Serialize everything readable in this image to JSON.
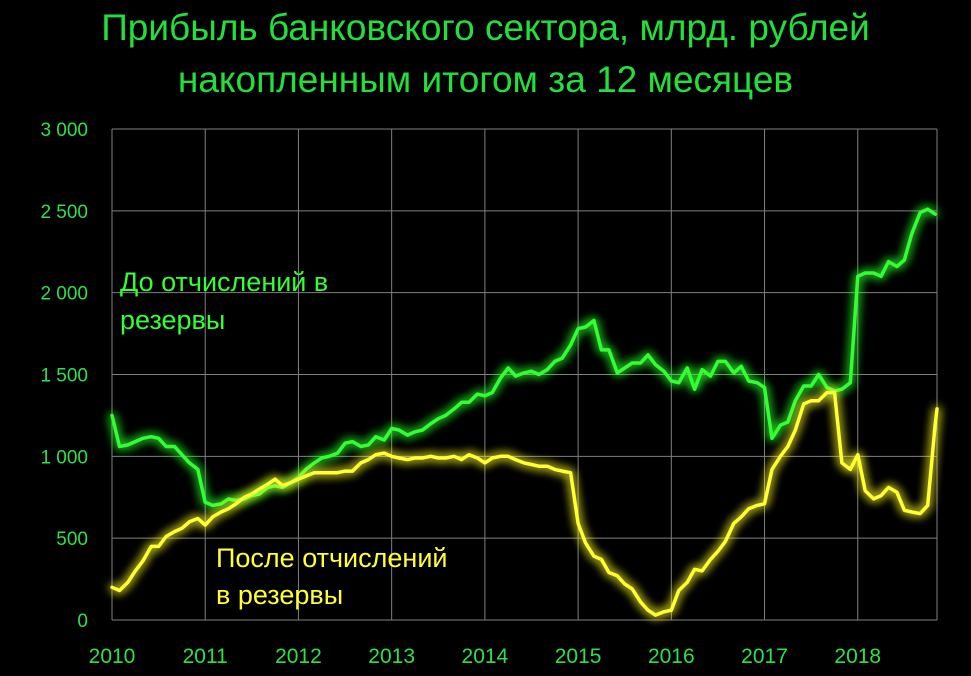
{
  "chart_data": {
    "type": "line",
    "title_line1": "Прибыль банковского сектора, млрд. рублей",
    "title_line2": "накопленным итогом за 12 месяцев",
    "y_ticks": [
      "0",
      "500",
      "1 000",
      "1 500",
      "2 000",
      "2 500",
      "3 000"
    ],
    "y_tick_values": [
      0,
      500,
      1000,
      1500,
      2000,
      2500,
      3000
    ],
    "x_ticks": [
      "2010",
      "2011",
      "2012",
      "2013",
      "2014",
      "2015",
      "2016",
      "2017",
      "2018"
    ],
    "x_tick_values": [
      2010,
      2011,
      2012,
      2013,
      2014,
      2015,
      2016,
      2017,
      2018
    ],
    "xlim": [
      2010,
      2018.85
    ],
    "ylim": [
      0,
      3000
    ],
    "grid": true,
    "series": [
      {
        "label_line1": "До отчислений в",
        "label_line2": "резервы",
        "color": "#33ff33",
        "points": [
          [
            2010.0,
            1250
          ],
          [
            2010.08,
            1060
          ],
          [
            2010.17,
            1070
          ],
          [
            2010.25,
            1090
          ],
          [
            2010.33,
            1110
          ],
          [
            2010.42,
            1120
          ],
          [
            2010.5,
            1110
          ],
          [
            2010.58,
            1060
          ],
          [
            2010.67,
            1060
          ],
          [
            2010.75,
            1010
          ],
          [
            2010.83,
            960
          ],
          [
            2010.92,
            920
          ],
          [
            2011.0,
            720
          ],
          [
            2011.08,
            700
          ],
          [
            2011.17,
            710
          ],
          [
            2011.25,
            740
          ],
          [
            2011.33,
            730
          ],
          [
            2011.42,
            740
          ],
          [
            2011.5,
            760
          ],
          [
            2011.58,
            770
          ],
          [
            2011.67,
            810
          ],
          [
            2011.75,
            820
          ],
          [
            2011.83,
            810
          ],
          [
            2011.92,
            840
          ],
          [
            2012.0,
            870
          ],
          [
            2012.08,
            920
          ],
          [
            2012.17,
            960
          ],
          [
            2012.25,
            990
          ],
          [
            2012.33,
            1000
          ],
          [
            2012.42,
            1020
          ],
          [
            2012.5,
            1080
          ],
          [
            2012.58,
            1090
          ],
          [
            2012.67,
            1060
          ],
          [
            2012.75,
            1070
          ],
          [
            2012.83,
            1120
          ],
          [
            2012.92,
            1100
          ],
          [
            2013.0,
            1170
          ],
          [
            2013.08,
            1160
          ],
          [
            2013.17,
            1130
          ],
          [
            2013.25,
            1150
          ],
          [
            2013.33,
            1160
          ],
          [
            2013.42,
            1200
          ],
          [
            2013.5,
            1230
          ],
          [
            2013.58,
            1250
          ],
          [
            2013.67,
            1290
          ],
          [
            2013.75,
            1330
          ],
          [
            2013.83,
            1330
          ],
          [
            2013.92,
            1380
          ],
          [
            2014.0,
            1370
          ],
          [
            2014.08,
            1390
          ],
          [
            2014.17,
            1480
          ],
          [
            2014.25,
            1540
          ],
          [
            2014.33,
            1490
          ],
          [
            2014.42,
            1510
          ],
          [
            2014.5,
            1520
          ],
          [
            2014.58,
            1500
          ],
          [
            2014.67,
            1530
          ],
          [
            2014.75,
            1580
          ],
          [
            2014.83,
            1600
          ],
          [
            2014.92,
            1680
          ],
          [
            2015.0,
            1780
          ],
          [
            2015.08,
            1790
          ],
          [
            2015.17,
            1830
          ],
          [
            2015.25,
            1650
          ],
          [
            2015.33,
            1650
          ],
          [
            2015.42,
            1510
          ],
          [
            2015.5,
            1540
          ],
          [
            2015.58,
            1570
          ],
          [
            2015.67,
            1570
          ],
          [
            2015.75,
            1620
          ],
          [
            2015.83,
            1560
          ],
          [
            2015.92,
            1520
          ],
          [
            2016.0,
            1460
          ],
          [
            2016.08,
            1450
          ],
          [
            2016.17,
            1540
          ],
          [
            2016.25,
            1410
          ],
          [
            2016.33,
            1530
          ],
          [
            2016.42,
            1490
          ],
          [
            2016.5,
            1580
          ],
          [
            2016.58,
            1580
          ],
          [
            2016.67,
            1510
          ],
          [
            2016.75,
            1550
          ],
          [
            2016.83,
            1460
          ],
          [
            2016.92,
            1450
          ],
          [
            2017.0,
            1420
          ],
          [
            2017.08,
            1110
          ],
          [
            2017.17,
            1190
          ],
          [
            2017.25,
            1210
          ],
          [
            2017.33,
            1340
          ],
          [
            2017.42,
            1430
          ],
          [
            2017.5,
            1430
          ],
          [
            2017.58,
            1500
          ],
          [
            2017.67,
            1420
          ],
          [
            2017.75,
            1400
          ],
          [
            2017.83,
            1410
          ],
          [
            2017.92,
            1450
          ],
          [
            2018.0,
            2100
          ],
          [
            2018.08,
            2120
          ],
          [
            2018.17,
            2120
          ],
          [
            2018.25,
            2100
          ],
          [
            2018.33,
            2190
          ],
          [
            2018.42,
            2160
          ],
          [
            2018.5,
            2200
          ],
          [
            2018.58,
            2360
          ],
          [
            2018.67,
            2490
          ],
          [
            2018.75,
            2510
          ],
          [
            2018.83,
            2480
          ]
        ]
      },
      {
        "label_line1": "После отчислений",
        "label_line2": "в резервы",
        "color": "#ffff33",
        "points": [
          [
            2010.0,
            200
          ],
          [
            2010.08,
            180
          ],
          [
            2010.17,
            230
          ],
          [
            2010.25,
            300
          ],
          [
            2010.33,
            360
          ],
          [
            2010.42,
            450
          ],
          [
            2010.5,
            450
          ],
          [
            2010.58,
            510
          ],
          [
            2010.67,
            540
          ],
          [
            2010.75,
            560
          ],
          [
            2010.83,
            600
          ],
          [
            2010.92,
            620
          ],
          [
            2011.0,
            580
          ],
          [
            2011.08,
            630
          ],
          [
            2011.17,
            660
          ],
          [
            2011.25,
            680
          ],
          [
            2011.33,
            710
          ],
          [
            2011.42,
            750
          ],
          [
            2011.5,
            770
          ],
          [
            2011.58,
            800
          ],
          [
            2011.67,
            830
          ],
          [
            2011.75,
            860
          ],
          [
            2011.83,
            820
          ],
          [
            2011.92,
            840
          ],
          [
            2012.0,
            860
          ],
          [
            2012.08,
            880
          ],
          [
            2012.17,
            900
          ],
          [
            2012.25,
            900
          ],
          [
            2012.33,
            900
          ],
          [
            2012.42,
            900
          ],
          [
            2012.5,
            910
          ],
          [
            2012.58,
            910
          ],
          [
            2012.67,
            960
          ],
          [
            2012.75,
            980
          ],
          [
            2012.83,
            1010
          ],
          [
            2012.92,
            1020
          ],
          [
            2013.0,
            1000
          ],
          [
            2013.08,
            990
          ],
          [
            2013.17,
            980
          ],
          [
            2013.25,
            990
          ],
          [
            2013.33,
            990
          ],
          [
            2013.42,
            1000
          ],
          [
            2013.5,
            990
          ],
          [
            2013.58,
            990
          ],
          [
            2013.67,
            1000
          ],
          [
            2013.75,
            980
          ],
          [
            2013.83,
            1010
          ],
          [
            2013.92,
            990
          ],
          [
            2014.0,
            960
          ],
          [
            2014.08,
            990
          ],
          [
            2014.17,
            1000
          ],
          [
            2014.25,
            1000
          ],
          [
            2014.33,
            980
          ],
          [
            2014.42,
            960
          ],
          [
            2014.5,
            950
          ],
          [
            2014.58,
            940
          ],
          [
            2014.67,
            940
          ],
          [
            2014.75,
            920
          ],
          [
            2014.83,
            910
          ],
          [
            2014.92,
            900
          ],
          [
            2015.0,
            590
          ],
          [
            2015.08,
            470
          ],
          [
            2015.17,
            390
          ],
          [
            2015.25,
            370
          ],
          [
            2015.33,
            290
          ],
          [
            2015.42,
            270
          ],
          [
            2015.5,
            220
          ],
          [
            2015.58,
            190
          ],
          [
            2015.67,
            110
          ],
          [
            2015.75,
            60
          ],
          [
            2015.83,
            30
          ],
          [
            2015.92,
            50
          ],
          [
            2016.0,
            60
          ],
          [
            2016.08,
            180
          ],
          [
            2016.17,
            230
          ],
          [
            2016.25,
            310
          ],
          [
            2016.33,
            300
          ],
          [
            2016.42,
            370
          ],
          [
            2016.5,
            420
          ],
          [
            2016.58,
            480
          ],
          [
            2016.67,
            590
          ],
          [
            2016.75,
            630
          ],
          [
            2016.83,
            680
          ],
          [
            2016.92,
            700
          ],
          [
            2017.0,
            710
          ],
          [
            2017.08,
            920
          ],
          [
            2017.17,
            1000
          ],
          [
            2017.25,
            1060
          ],
          [
            2017.33,
            1160
          ],
          [
            2017.42,
            1320
          ],
          [
            2017.5,
            1340
          ],
          [
            2017.58,
            1340
          ],
          [
            2017.67,
            1390
          ],
          [
            2017.75,
            1390
          ],
          [
            2017.83,
            960
          ],
          [
            2017.92,
            920
          ],
          [
            2018.0,
            1010
          ],
          [
            2018.08,
            790
          ],
          [
            2018.17,
            740
          ],
          [
            2018.25,
            760
          ],
          [
            2018.33,
            810
          ],
          [
            2018.42,
            780
          ],
          [
            2018.5,
            670
          ],
          [
            2018.58,
            660
          ],
          [
            2018.67,
            650
          ],
          [
            2018.75,
            700
          ],
          [
            2018.83,
            1190
          ],
          [
            2018.9,
            1290
          ]
        ]
      }
    ]
  }
}
